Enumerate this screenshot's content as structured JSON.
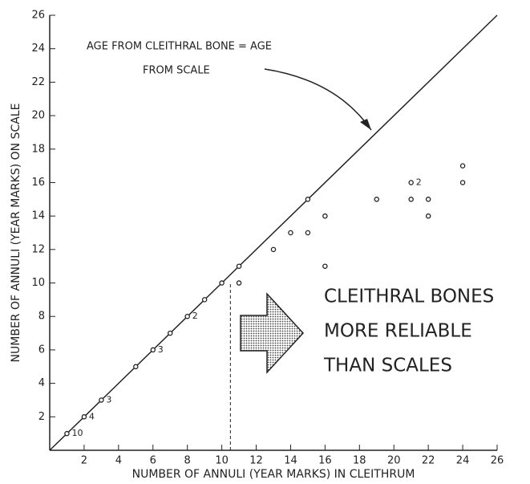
{
  "chart_data": {
    "type": "scatter",
    "x_label": "NUMBER OF ANNULI (YEAR MARKS) IN CLEITHRUM",
    "y_label": "NUMBER OF ANNULI (YEAR MARKS) ON SCALE",
    "x": [
      1,
      2,
      3,
      5,
      6,
      7,
      8,
      9,
      10,
      11,
      11,
      13,
      14,
      15,
      15,
      16,
      16,
      19,
      21,
      21,
      22,
      22,
      24,
      24
    ],
    "values": [
      1,
      2,
      3,
      5,
      6,
      7,
      8,
      9,
      10,
      11,
      10,
      12,
      13,
      13,
      15,
      14,
      11,
      15,
      16,
      15,
      15,
      14,
      17,
      16
    ],
    "point_labels": [
      "10",
      "4",
      "3",
      null,
      "3",
      null,
      "2",
      null,
      null,
      null,
      null,
      null,
      null,
      null,
      null,
      null,
      null,
      null,
      "2",
      null,
      null,
      null,
      null,
      null
    ],
    "xlim": [
      0,
      26
    ],
    "ylim": [
      0,
      26
    ],
    "xticks": [
      2,
      4,
      6,
      8,
      10,
      12,
      14,
      16,
      18,
      20,
      22,
      24,
      26
    ],
    "yticks": [
      2,
      4,
      6,
      8,
      10,
      12,
      14,
      16,
      18,
      20,
      22,
      24,
      26
    ],
    "reference_line": {
      "x": [
        0,
        26
      ],
      "y": [
        0,
        26
      ]
    },
    "dashed_line": {
      "x": 10.5,
      "y": [
        0,
        10
      ]
    },
    "annotation_lines": [
      "AGE FROM CLEITHRAL BONE = AGE",
      "FROM SCALE"
    ],
    "callout_lines": [
      "CLEITHRAL BONES",
      "MORE RELIABLE",
      "THAN SCALES"
    ],
    "color": "#222222"
  }
}
